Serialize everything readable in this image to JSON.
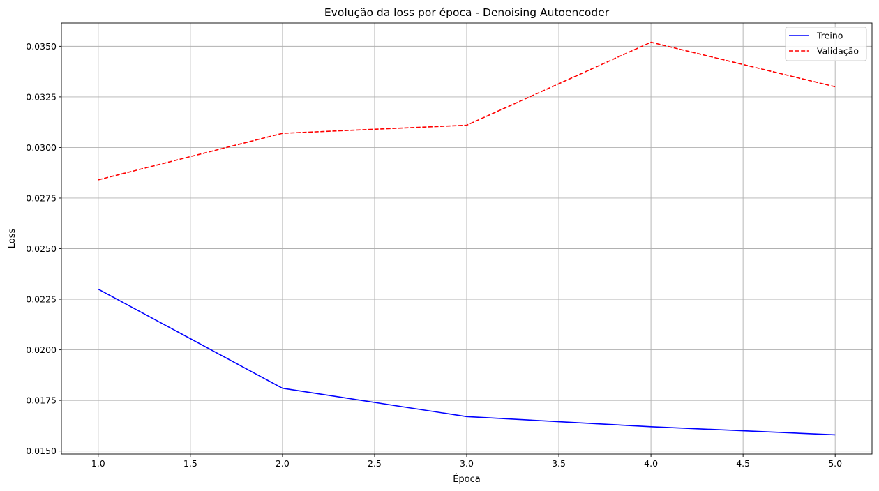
{
  "chart_data": {
    "type": "line",
    "title": "Evolução da loss por época - Denoising Autoencoder",
    "xlabel": "Época",
    "ylabel": "Loss",
    "x": [
      1,
      2,
      3,
      4,
      5
    ],
    "xlim": [
      0.8,
      5.2
    ],
    "ylim": [
      0.01485,
      0.03615
    ],
    "xticks": [
      1.0,
      1.5,
      2.0,
      2.5,
      3.0,
      3.5,
      4.0,
      4.5,
      5.0
    ],
    "xtick_labels": [
      "1.0",
      "1.5",
      "2.0",
      "2.5",
      "3.0",
      "3.5",
      "4.0",
      "4.5",
      "5.0"
    ],
    "yticks": [
      0.015,
      0.0175,
      0.02,
      0.0225,
      0.025,
      0.0275,
      0.03,
      0.0325,
      0.035
    ],
    "ytick_labels": [
      "0.0150",
      "0.0175",
      "0.0200",
      "0.0225",
      "0.0250",
      "0.0275",
      "0.0300",
      "0.0325",
      "0.0350"
    ],
    "grid": true,
    "legend_position": "top-right",
    "series": [
      {
        "name": "Treino",
        "values": [
          0.023,
          0.0181,
          0.0167,
          0.0162,
          0.0158
        ],
        "color": "#0000ff",
        "style": "solid"
      },
      {
        "name": "Validação",
        "values": [
          0.0284,
          0.0307,
          0.0311,
          0.0352,
          0.033
        ],
        "color": "#ff0000",
        "style": "dashed"
      }
    ]
  }
}
